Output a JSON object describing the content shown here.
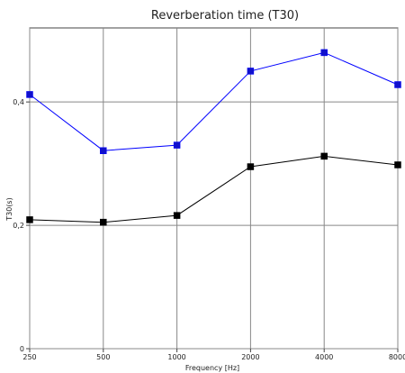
{
  "chart_data": {
    "type": "line",
    "title": "Reverberation time (T30)",
    "xlabel": "Frequency [Hz]",
    "ylabel": "T30(s)",
    "x_scale": "log",
    "categories": [
      "250",
      "500",
      "1000",
      "2000",
      "4000",
      "8000"
    ],
    "x": [
      250,
      500,
      1000,
      2000,
      4000,
      8000
    ],
    "y_ticks": [
      0,
      0.2,
      0.4
    ],
    "y_tick_labels": [
      "0",
      "0,2",
      "0,4"
    ],
    "ylim": [
      0,
      0.52
    ],
    "grid": true,
    "series": [
      {
        "values": [
          0.412,
          0.321,
          0.33,
          0.45,
          0.48,
          0.428
        ],
        "color": "#0000ff",
        "marker": "square"
      },
      {
        "values": [
          0.209,
          0.205,
          0.216,
          0.295,
          0.312,
          0.298
        ],
        "color": "#000000",
        "marker": "square"
      }
    ]
  }
}
